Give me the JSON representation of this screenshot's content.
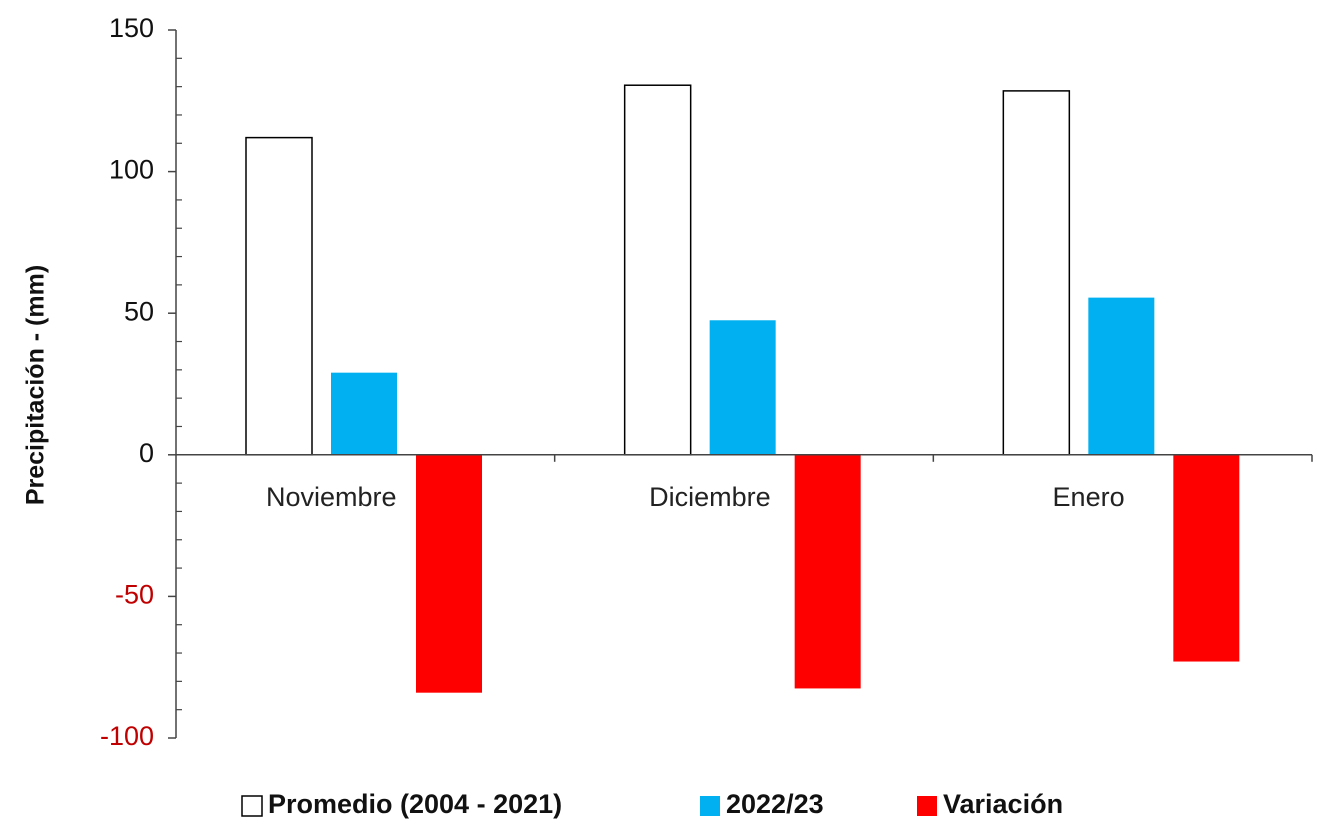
{
  "chart_data": {
    "type": "bar",
    "title": "",
    "xlabel": "",
    "ylabel": "Precipitación - (mm)",
    "categories": [
      "Noviembre",
      "Diciembre",
      "Enero"
    ],
    "series": [
      {
        "name": "Promedio (2004 - 2021)",
        "values": [
          112,
          130.5,
          128.5
        ]
      },
      {
        "name": "2022/23",
        "values": [
          29,
          47.5,
          55.5
        ]
      },
      {
        "name": "Variación",
        "values": [
          -84,
          -82.5,
          -73
        ]
      }
    ],
    "ylim": [
      -100,
      150
    ],
    "yticks": [
      -100,
      -50,
      0,
      50,
      100,
      150
    ],
    "ytick_labels": [
      "-100",
      "-50",
      "0",
      "50",
      "100",
      "150"
    ],
    "grid": false,
    "legend_position": "bottom",
    "colors": {
      "Promedio (2004 - 2021)": "#ffffff",
      "2022/23": "#00b0f0",
      "Variación": "#ff0000",
      "bar_outline": "#000000",
      "positive_tick_label": "#111111",
      "negative_tick_label": "#c00000",
      "axis": "#444444"
    }
  }
}
